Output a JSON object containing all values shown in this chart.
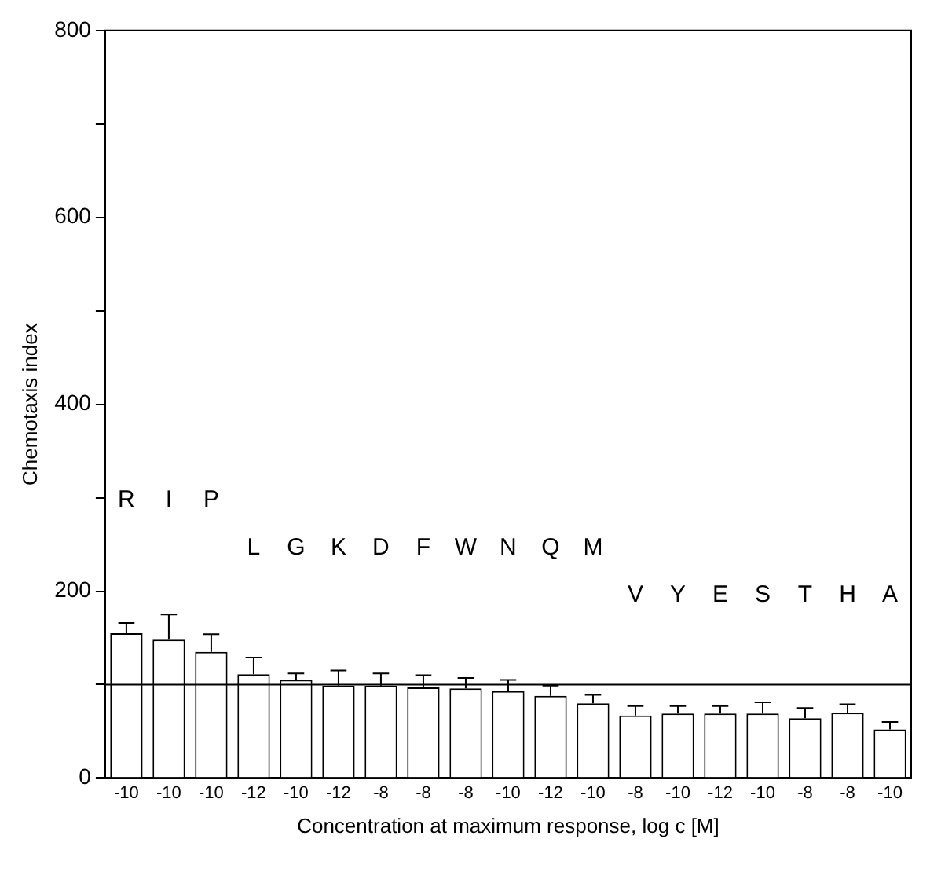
{
  "chart_data": {
    "type": "bar",
    "xlabel": "Concentration at maximum response, log c [M]",
    "ylabel": "Chemotaxis index",
    "categories": [
      "-10",
      "-10",
      "-10",
      "-12",
      "-10",
      "-12",
      "-8",
      "-8",
      "-8",
      "-10",
      "-12",
      "-10",
      "-8",
      "-10",
      "-12",
      "-10",
      "-8",
      "-8",
      "-10"
    ],
    "values": [
      155,
      148,
      135,
      111,
      105,
      99,
      99,
      97,
      96,
      93,
      88,
      80,
      67,
      69,
      69,
      69,
      64,
      70,
      52
    ],
    "errors": [
      [
        155,
        166
      ],
      [
        148,
        175
      ],
      [
        135,
        154
      ],
      [
        111,
        129
      ],
      [
        105,
        112
      ],
      [
        99,
        115
      ],
      [
        99,
        112
      ],
      [
        97,
        110
      ],
      [
        96,
        107
      ],
      [
        93,
        105
      ],
      [
        88,
        99
      ],
      [
        80,
        89
      ],
      [
        67,
        77
      ],
      [
        69,
        77
      ],
      [
        69,
        77
      ],
      [
        69,
        81
      ],
      [
        64,
        75
      ],
      [
        70,
        79
      ],
      [
        52,
        60
      ]
    ],
    "color": "#ffffff",
    "ylim": [
      0,
      800
    ],
    "yticks": [
      0,
      {
        "value": 100,
        "label": null
      },
      200,
      {
        "value": 300,
        "label": null
      },
      400,
      {
        "value": 500,
        "label": null
      },
      600,
      {
        "value": 700,
        "label": null
      },
      800
    ],
    "ref_lines": [
      {
        "axis": "y",
        "value": 100,
        "color": "#000000"
      }
    ],
    "annotations": [
      "R",
      "I",
      "P",
      "L",
      "G",
      "K",
      "D",
      "F",
      "W",
      "N",
      "Q",
      "M",
      "V",
      "Y",
      "E",
      "S",
      "T",
      "H",
      "A"
    ],
    "grid": false,
    "legend": false
  }
}
